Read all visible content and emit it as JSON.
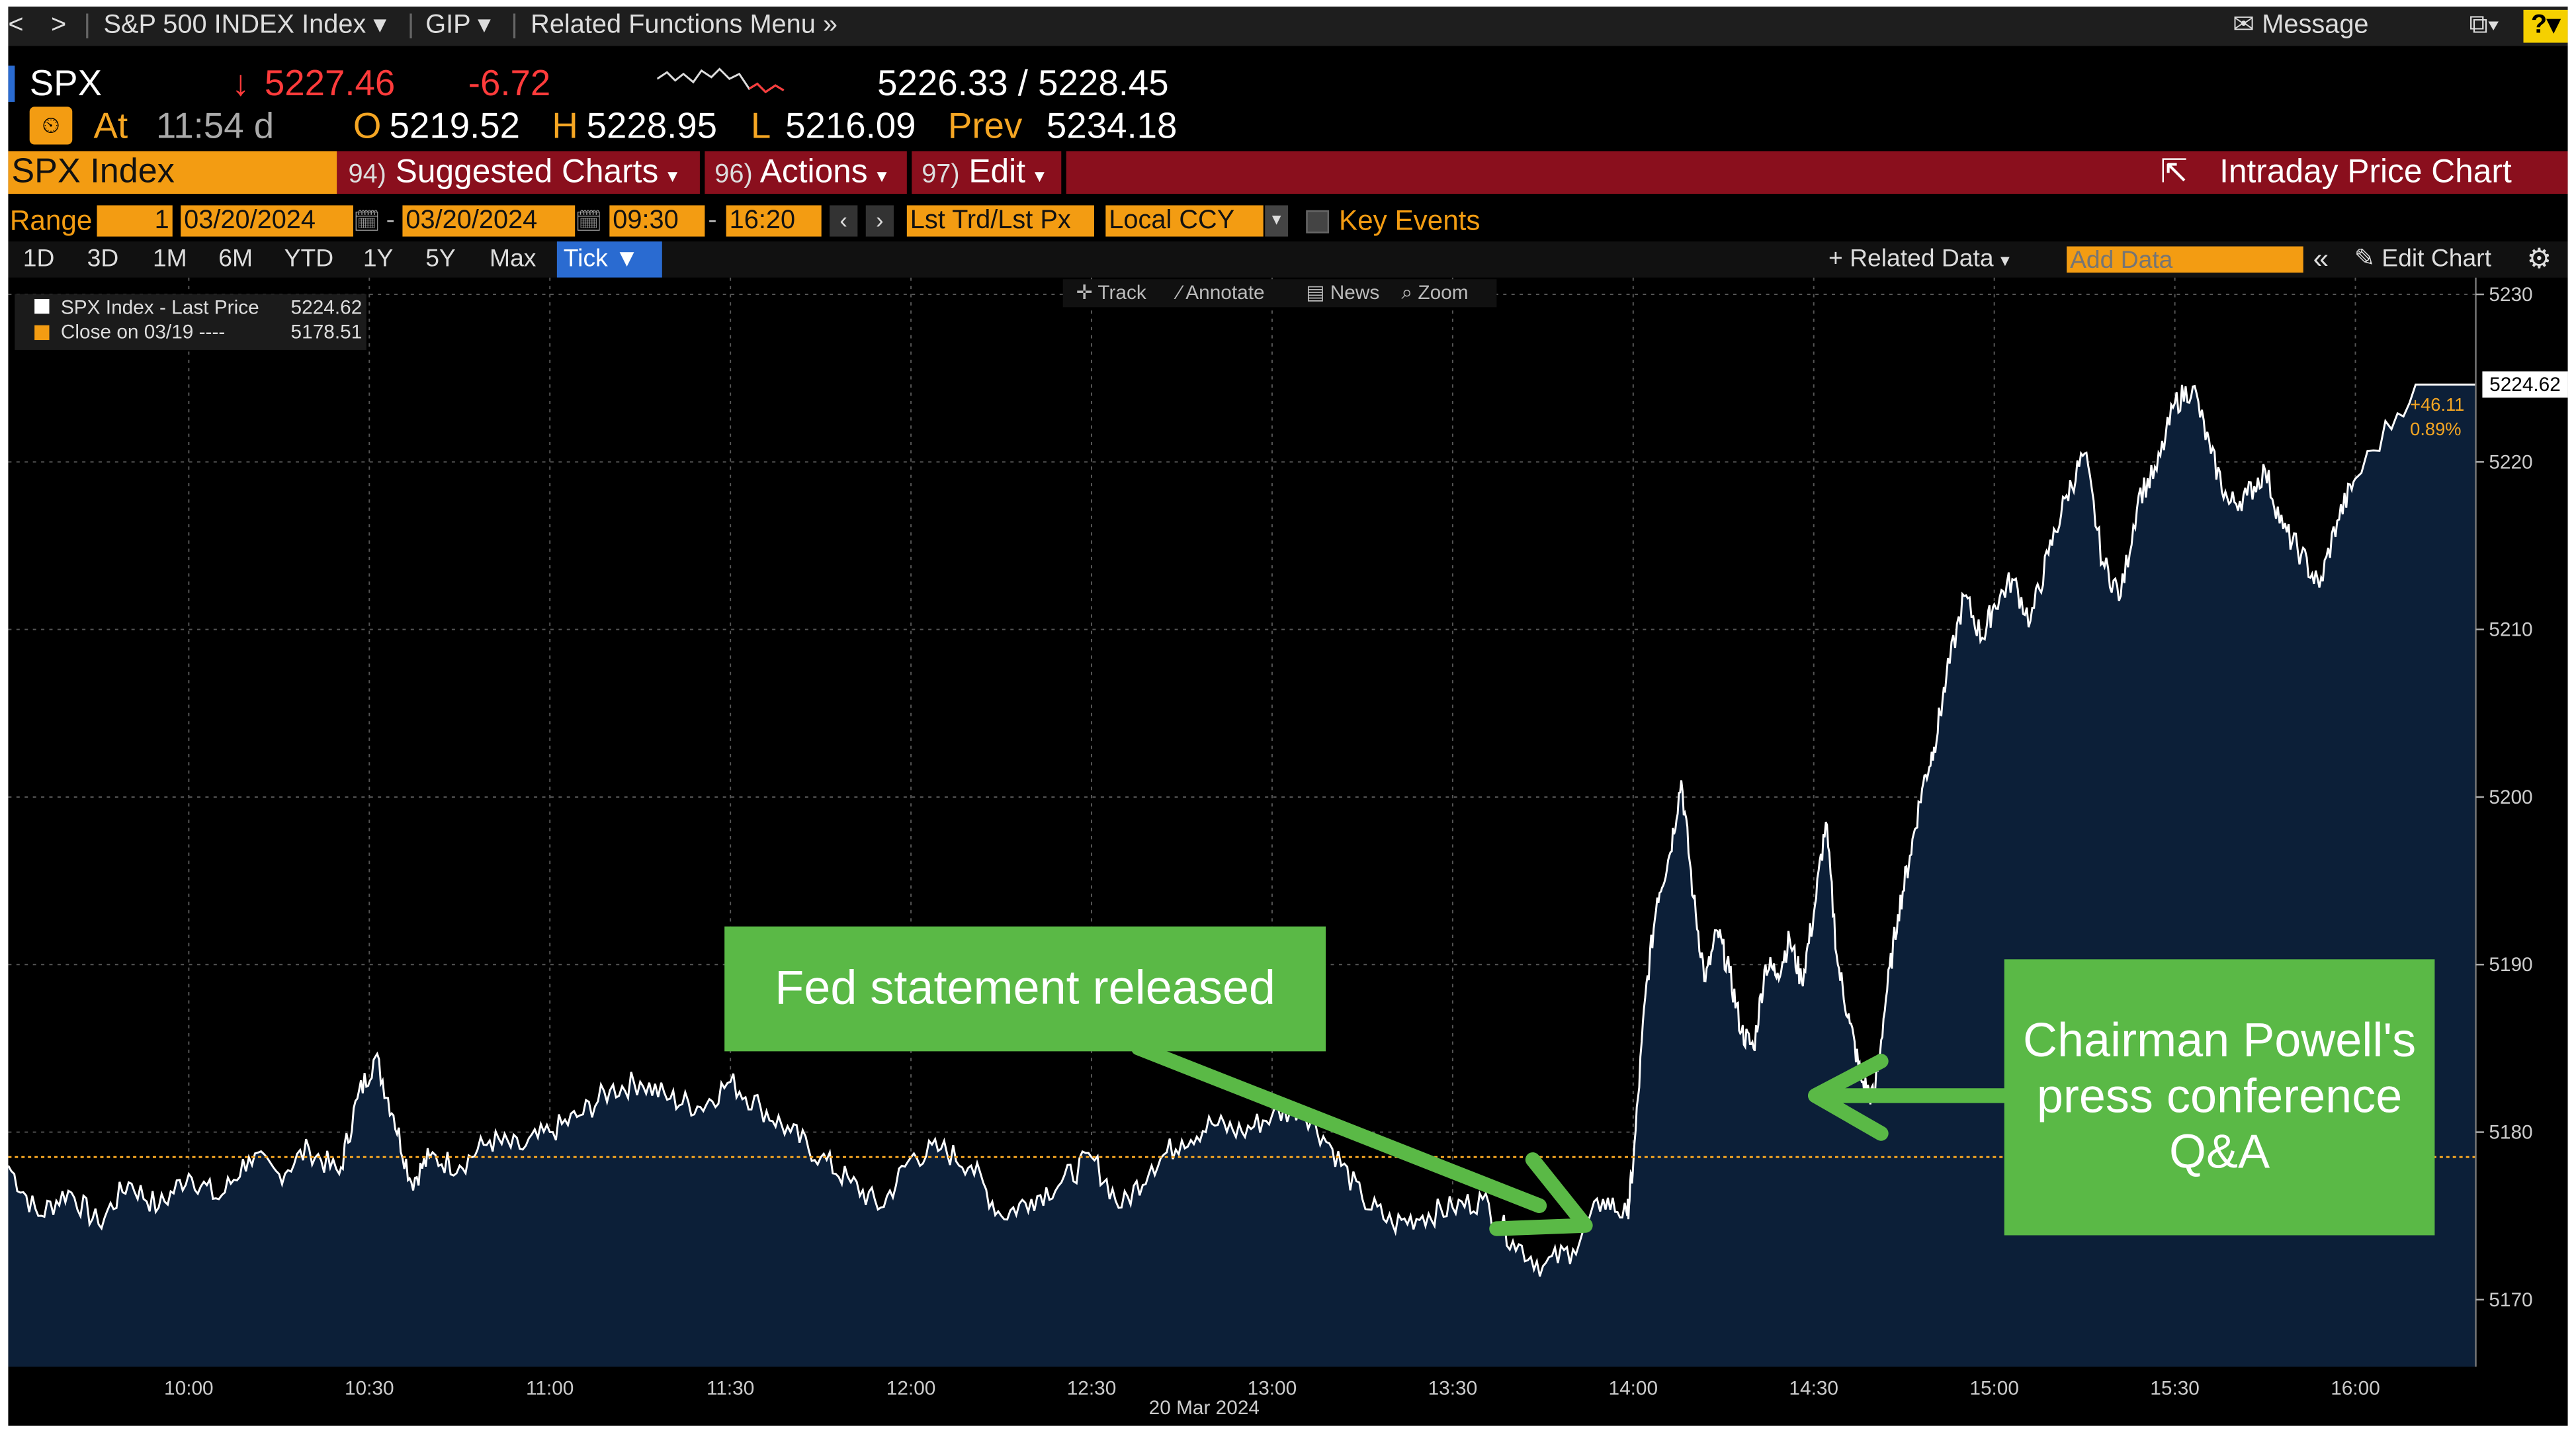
{
  "menubar": {
    "back": "<",
    "forward": ">",
    "security": "S&P 500 INDEX Index",
    "gip": "GIP",
    "related": "Related Functions Menu",
    "message": "Message",
    "help": "?"
  },
  "quote": {
    "ticker": "SPX",
    "last": "5227.46",
    "change": "-6.72",
    "bid_ask": "5226.33 / 5228.45",
    "at_label": "At",
    "time": "11:54 d",
    "open_label": "O",
    "open": "5219.52",
    "high_label": "H",
    "high": "5228.95",
    "low_label": "L",
    "low": "5216.09",
    "prev_label": "Prev",
    "prev": "5234.18"
  },
  "cmdbar": {
    "security": "SPX Index",
    "m1_num": "94)",
    "m1": "Suggested Charts",
    "m2_num": "96)",
    "m2": "Actions",
    "m3_num": "97)",
    "m3": "Edit",
    "title": "Intraday Price Chart"
  },
  "controls": {
    "range_label": "Range",
    "range_val": "1",
    "date_from": "03/20/2024",
    "date_to": "03/20/2024",
    "time_from": "09:30",
    "time_to": "16:20",
    "price_type": "Lst Trd/Lst Px",
    "currency": "Local CCY",
    "key_events": "Key Events"
  },
  "periods": [
    "1D",
    "3D",
    "1M",
    "6M",
    "YTD",
    "1Y",
    "5Y",
    "Max"
  ],
  "active_period": "Tick",
  "toolbar": {
    "related_data": "Related Data",
    "add_data_placeholder": "Add Data",
    "edit_chart": "Edit Chart",
    "track": "Track",
    "annotate": "Annotate",
    "news": "News",
    "zoom": "Zoom"
  },
  "legend": {
    "l1_label": "SPX Index - Last Price",
    "l1_value": "5224.62",
    "l2_label": "Close on 03/19 ----",
    "l2_value": "5178.51"
  },
  "colors": {
    "background": "#000000",
    "area_fill": "#0c1f38",
    "price_line": "#ffffff",
    "prev_close_line": "#f5a623",
    "callout": "#5ab946",
    "accent_orange": "#f39c12",
    "command_bar": "#8a0f1d",
    "change_red": "#ff3b3b"
  },
  "chart_data": {
    "type": "area",
    "ylim": [
      5166,
      5231
    ],
    "yticks": [
      5170,
      5180,
      5190,
      5200,
      5210,
      5220,
      5230
    ],
    "xticks": [
      "10:00",
      "10:30",
      "11:00",
      "11:30",
      "12:00",
      "12:30",
      "13:00",
      "13:30",
      "14:00",
      "14:30",
      "15:00",
      "15:30",
      "16:00"
    ],
    "xlim": [
      "09:30",
      "16:20"
    ],
    "date_label": "20 Mar 2024",
    "last_value": "5224.62",
    "change_abs": "+46.11",
    "change_pct": "0.89%",
    "prev_close": 5178.51,
    "grid": true,
    "series": [
      {
        "x": [
          "09:30",
          "09:35",
          "09:40",
          "09:45",
          "09:50",
          "09:55",
          "10:00",
          "10:05",
          "10:10",
          "10:15",
          "10:20",
          "10:25",
          "10:28",
          "10:31",
          "10:34",
          "10:37",
          "10:40",
          "10:45",
          "10:50",
          "10:55",
          "11:00",
          "11:05",
          "11:10",
          "11:15",
          "11:20",
          "11:25",
          "11:30",
          "11:35",
          "11:40",
          "11:45",
          "11:50",
          "11:55",
          "12:00",
          "12:05",
          "12:10",
          "12:15",
          "12:20",
          "12:25",
          "12:30",
          "12:35",
          "12:40",
          "12:45",
          "12:50",
          "12:55",
          "13:00",
          "13:05",
          "13:10",
          "13:15",
          "13:20",
          "13:25",
          "13:30",
          "13:35",
          "13:40",
          "13:45",
          "13:50",
          "13:55",
          "13:59",
          "14:00",
          "14:02",
          "14:04",
          "14:06",
          "14:08",
          "14:10",
          "14:12",
          "14:14",
          "14:16",
          "14:18",
          "14:20",
          "14:22",
          "14:24",
          "14:26",
          "14:28",
          "14:30",
          "14:32",
          "14:34",
          "14:36",
          "14:38",
          "14:40",
          "14:42",
          "14:44",
          "14:46",
          "14:48",
          "14:50",
          "14:52",
          "14:55",
          "14:58",
          "15:00",
          "15:03",
          "15:06",
          "15:09",
          "15:12",
          "15:15",
          "15:18",
          "15:21",
          "15:24",
          "15:27",
          "15:30",
          "15:33",
          "15:36",
          "15:39",
          "15:42",
          "15:45",
          "15:48",
          "15:51",
          "15:54",
          "15:57",
          "16:00",
          "16:10",
          "16:20"
        ],
        "values": [
          5178.0,
          5175.0,
          5176.5,
          5174.5,
          5177.0,
          5175.5,
          5177.5,
          5176.0,
          5178.5,
          5177.5,
          5179.0,
          5177.5,
          5182.0,
          5184.5,
          5181.0,
          5177.0,
          5178.5,
          5178.0,
          5179.5,
          5179.0,
          5180.0,
          5181.0,
          5182.5,
          5183.0,
          5182.0,
          5181.5,
          5183.0,
          5181.5,
          5180.0,
          5178.5,
          5177.0,
          5175.5,
          5178.5,
          5179.0,
          5178.0,
          5175.0,
          5176.0,
          5177.0,
          5178.5,
          5175.5,
          5178.0,
          5179.5,
          5180.5,
          5180.0,
          5181.0,
          5181.5,
          5179.0,
          5176.0,
          5174.5,
          5175.0,
          5175.5,
          5176.0,
          5173.5,
          5172.0,
          5173.0,
          5176.0,
          5175.0,
          5178.0,
          5188.0,
          5194.0,
          5196.5,
          5201.0,
          5194.0,
          5189.0,
          5192.0,
          5189.5,
          5186.0,
          5185.0,
          5190.0,
          5189.5,
          5191.5,
          5189.0,
          5193.0,
          5198.5,
          5190.0,
          5186.5,
          5183.0,
          5182.0,
          5188.0,
          5193.0,
          5196.5,
          5200.5,
          5203.0,
          5207.0,
          5212.0,
          5209.5,
          5211.5,
          5213.0,
          5210.5,
          5214.5,
          5218.0,
          5220.5,
          5214.0,
          5212.0,
          5218.0,
          5219.5,
          5223.5,
          5224.5,
          5220.5,
          5217.5,
          5218.0,
          5219.5,
          5216.0,
          5214.5,
          5212.5,
          5216.5,
          5219.0,
          5224.62,
          5224.62
        ]
      }
    ],
    "annotations": [
      {
        "text": "Fed statement released",
        "x": "14:00"
      },
      {
        "text": "Chairman Powell's press conference Q&A",
        "x": "14:36"
      }
    ]
  }
}
